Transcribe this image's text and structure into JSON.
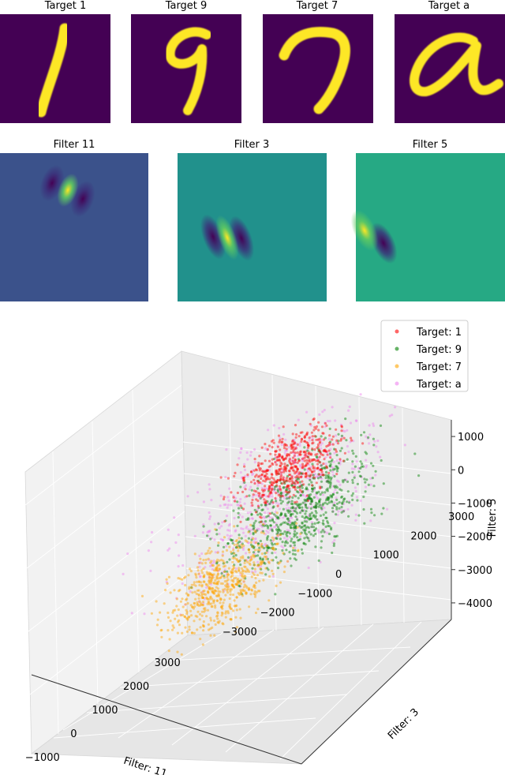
{
  "chart_data": [
    {
      "type": "heatmap",
      "panel": "targets",
      "colormap": "viridis",
      "panels": [
        {
          "title": "Target 1",
          "glyph": "1"
        },
        {
          "title": "Target 9",
          "glyph": "9"
        },
        {
          "title": "Target 7",
          "glyph": "7"
        },
        {
          "title": "Target a",
          "glyph": "a"
        }
      ]
    },
    {
      "type": "heatmap",
      "panel": "filters",
      "colormap": "viridis",
      "panels": [
        {
          "title": "Filter 11"
        },
        {
          "title": "Filter 3"
        },
        {
          "title": "Filter 5"
        }
      ]
    },
    {
      "type": "scatter",
      "projection": "3d",
      "xlabel": "Filter: 11",
      "ylabel": "Filter: 3",
      "zlabel": "Filter: 5",
      "xticks": [
        "−1000",
        "0",
        "1000",
        "2000",
        "3000"
      ],
      "yticks": [
        "−3000",
        "−2000",
        "−1000",
        "0",
        "1000",
        "2000",
        "3000"
      ],
      "zticks": [
        "−4000",
        "−3000",
        "−2000",
        "−1000",
        "0",
        "1000"
      ],
      "xlim": [
        -1500,
        3500
      ],
      "ylim": [
        -3500,
        3500
      ],
      "zlim": [
        -4500,
        1500
      ],
      "legend_position": "top-right",
      "series": [
        {
          "name": "Target: 1",
          "color": "#ff0000",
          "x_mean": 800,
          "y_mean": 1500,
          "z_mean": -200,
          "spread": [
            450,
            900,
            700
          ]
        },
        {
          "name": "Target: 9",
          "color": "#008000",
          "x_mean": 1900,
          "y_mean": 800,
          "z_mean": -2000,
          "spread": [
            800,
            1300,
            1100
          ]
        },
        {
          "name": "Target: 7",
          "color": "#ffa500",
          "x_mean": 200,
          "y_mean": 200,
          "z_mean": -2700,
          "spread": [
            500,
            1000,
            900
          ]
        },
        {
          "name": "Target: a",
          "color": "#ee82ee",
          "x_mean": 1600,
          "y_mean": 500,
          "z_mean": -1200,
          "spread": [
            1400,
            1700,
            1400
          ]
        }
      ]
    }
  ]
}
